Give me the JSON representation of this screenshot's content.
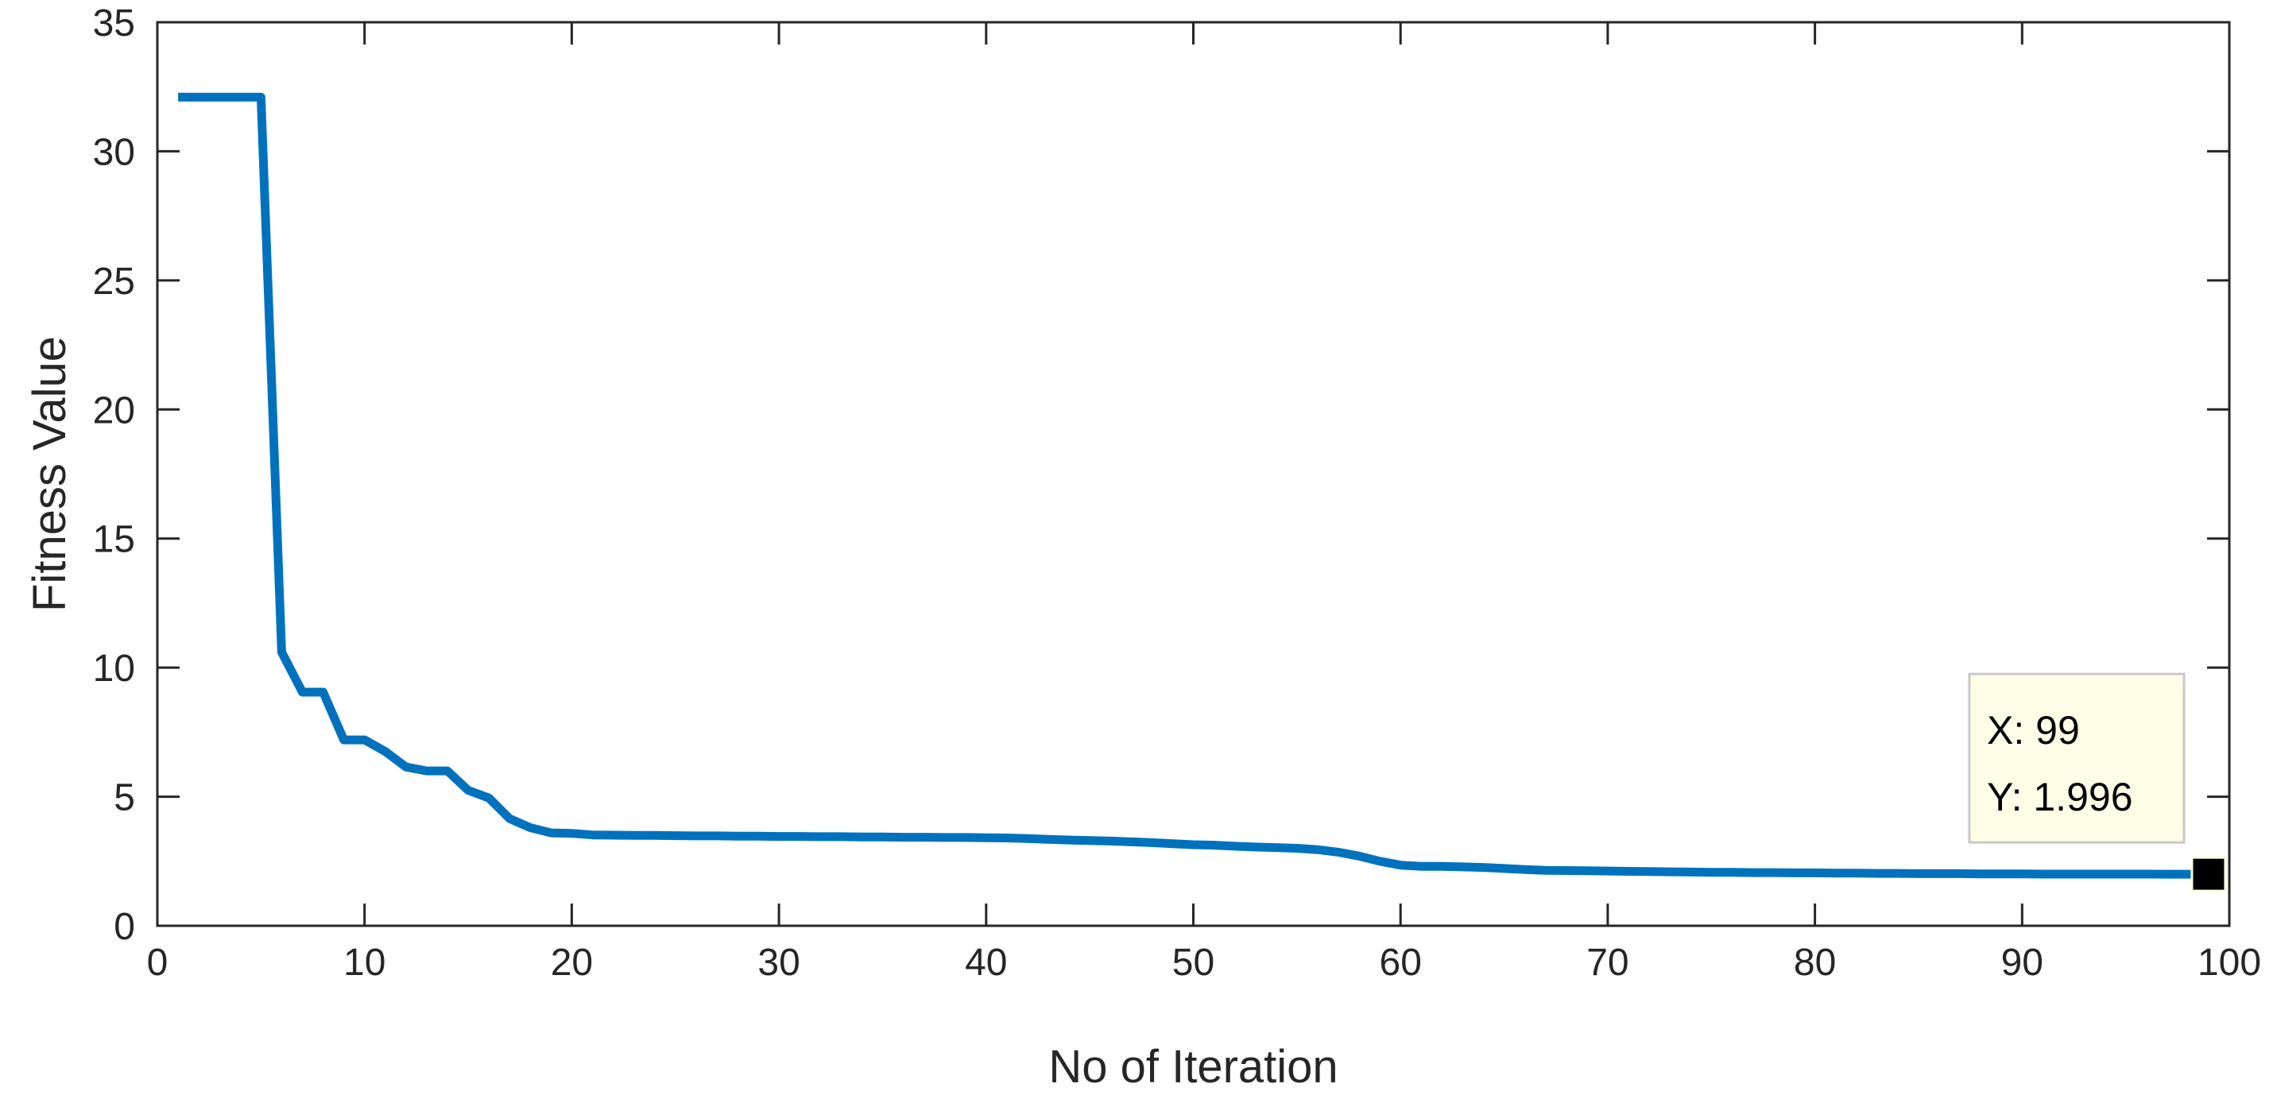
{
  "chart_data": {
    "type": "line",
    "xlabel": "No of Iteration",
    "ylabel": "Fitness Value",
    "xlim": [
      0,
      100
    ],
    "ylim": [
      0,
      35
    ],
    "xticks": [
      0,
      10,
      20,
      30,
      40,
      50,
      60,
      70,
      80,
      90,
      100
    ],
    "yticks": [
      0,
      5,
      10,
      15,
      20,
      25,
      30,
      35
    ],
    "grid": false,
    "line_color": "#0072BD",
    "series": [
      {
        "x": [
          1,
          2,
          3,
          4,
          5,
          6,
          7,
          8,
          9,
          10,
          11,
          12,
          13,
          14,
          15,
          16,
          17,
          18,
          19,
          20,
          21,
          22,
          23,
          24,
          25,
          26,
          27,
          28,
          29,
          30,
          31,
          32,
          33,
          34,
          35,
          36,
          37,
          38,
          39,
          40,
          41,
          42,
          43,
          44,
          45,
          46,
          47,
          48,
          49,
          50,
          51,
          52,
          53,
          54,
          55,
          56,
          57,
          58,
          59,
          60,
          61,
          62,
          63,
          64,
          65,
          66,
          67,
          68,
          69,
          70,
          71,
          72,
          73,
          74,
          75,
          76,
          77,
          78,
          79,
          80,
          81,
          82,
          83,
          84,
          85,
          86,
          87,
          88,
          89,
          90,
          91,
          92,
          93,
          94,
          95,
          96,
          97,
          98,
          99
        ],
        "y": [
          32.1,
          32.1,
          32.1,
          32.1,
          32.1,
          10.6,
          9.05,
          9.05,
          7.2,
          7.2,
          6.75,
          6.15,
          6.0,
          6.0,
          5.25,
          4.95,
          4.15,
          3.8,
          3.6,
          3.58,
          3.52,
          3.51,
          3.5,
          3.5,
          3.49,
          3.48,
          3.48,
          3.47,
          3.47,
          3.46,
          3.46,
          3.45,
          3.45,
          3.44,
          3.44,
          3.43,
          3.43,
          3.42,
          3.42,
          3.41,
          3.4,
          3.38,
          3.35,
          3.32,
          3.3,
          3.28,
          3.25,
          3.22,
          3.18,
          3.14,
          3.12,
          3.08,
          3.05,
          3.03,
          3.0,
          2.95,
          2.85,
          2.7,
          2.5,
          2.35,
          2.3,
          2.3,
          2.28,
          2.26,
          2.22,
          2.18,
          2.15,
          2.14,
          2.13,
          2.12,
          2.11,
          2.1,
          2.09,
          2.08,
          2.07,
          2.07,
          2.06,
          2.06,
          2.05,
          2.05,
          2.04,
          2.04,
          2.03,
          2.03,
          2.02,
          2.02,
          2.02,
          2.01,
          2.01,
          2.01,
          2.0,
          2.0,
          2.0,
          2.0,
          2.0,
          2.0,
          1.998,
          1.997,
          1.996
        ]
      }
    ],
    "datatip": {
      "point": {
        "x": 99,
        "y": 1.996
      },
      "x_text": "X: 99",
      "y_text": "Y: 1.996"
    }
  }
}
